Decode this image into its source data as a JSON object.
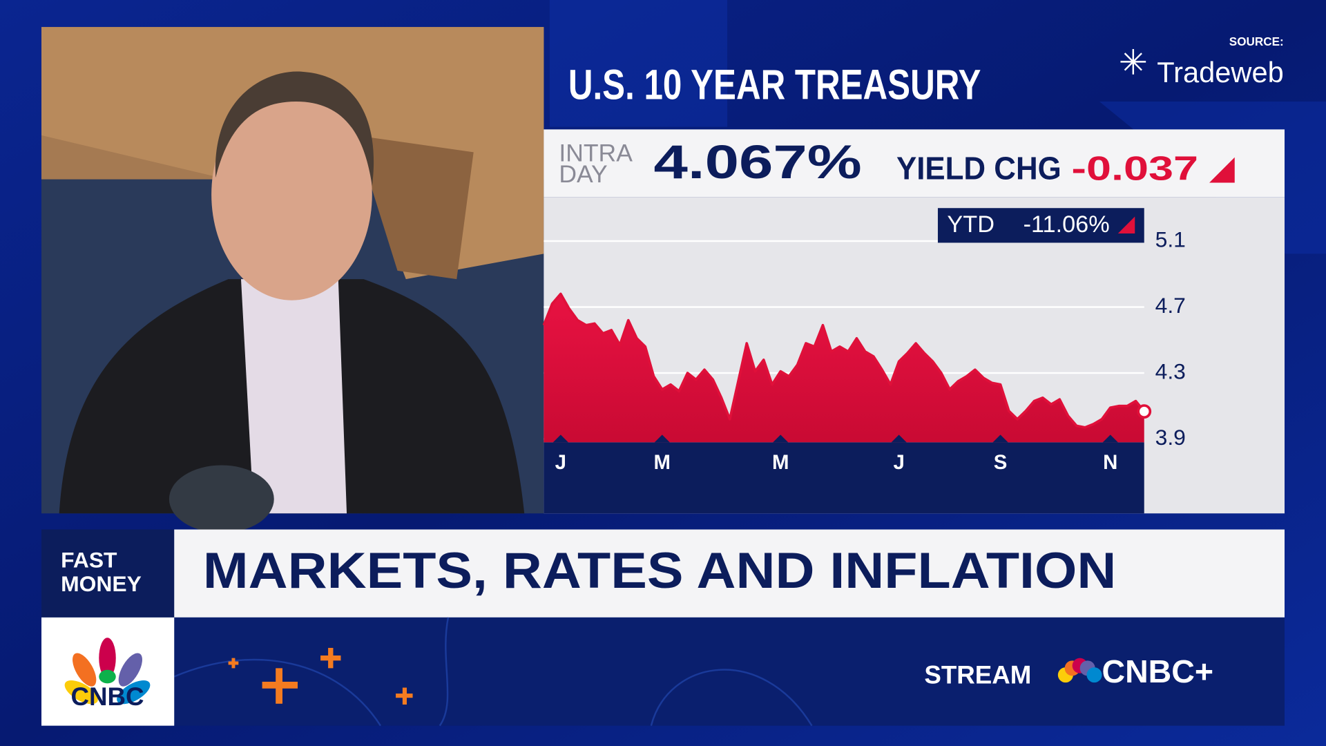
{
  "chart_data": {
    "type": "area",
    "title": "U.S. 10 YEAR TREASURY",
    "categories": [
      null,
      null,
      "J",
      null,
      null,
      null,
      null,
      null,
      null,
      null,
      null,
      null,
      null,
      null,
      "M",
      null,
      null,
      null,
      null,
      null,
      null,
      null,
      null,
      null,
      null,
      null,
      null,
      null,
      "M",
      null,
      null,
      null,
      null,
      null,
      null,
      null,
      null,
      null,
      null,
      null,
      null,
      null,
      "J",
      null,
      null,
      null,
      null,
      null,
      null,
      null,
      null,
      null,
      null,
      null,
      "S",
      null,
      null,
      null,
      null,
      null,
      null,
      null,
      null,
      null,
      null,
      null,
      null,
      "N",
      null,
      null,
      null,
      null
    ],
    "values": [
      4.59,
      4.72,
      4.78,
      4.69,
      4.62,
      4.59,
      4.6,
      4.54,
      4.56,
      4.47,
      4.62,
      4.51,
      4.46,
      4.28,
      4.2,
      4.23,
      4.19,
      4.3,
      4.26,
      4.32,
      4.26,
      4.15,
      4.02,
      4.25,
      4.48,
      4.31,
      4.38,
      4.23,
      4.31,
      4.28,
      4.35,
      4.48,
      4.46,
      4.59,
      4.43,
      4.46,
      4.43,
      4.51,
      4.43,
      4.4,
      4.32,
      4.23,
      4.37,
      4.42,
      4.48,
      4.42,
      4.37,
      4.3,
      4.2,
      4.25,
      4.28,
      4.32,
      4.27,
      4.24,
      4.23,
      4.07,
      4.02,
      4.07,
      4.13,
      4.15,
      4.11,
      4.14,
      4.04,
      3.98,
      3.97,
      3.99,
      4.02,
      4.09,
      4.1,
      4.1,
      4.13,
      4.067
    ],
    "color": "#e0103a",
    "ylim": [
      3.9,
      5.1
    ],
    "yticks": [
      5.1,
      4.7,
      4.3,
      3.9
    ],
    "grid": true
  },
  "source": {
    "label": "SOURCE:",
    "name": "Tradeweb"
  },
  "quote": {
    "intra": "INTRA",
    "day": "DAY",
    "yield": "4.067%",
    "change_label": "YIELD CHG",
    "change": "-0.037",
    "ytd_label": "YTD",
    "ytd": "-11.06%"
  },
  "lower_third": {
    "show_line1": "FAST",
    "show_line2": "MONEY",
    "headline": "MARKETS, RATES AND INFLATION",
    "stream": "STREAM",
    "service": "CNBC+",
    "network": "CNBC"
  }
}
